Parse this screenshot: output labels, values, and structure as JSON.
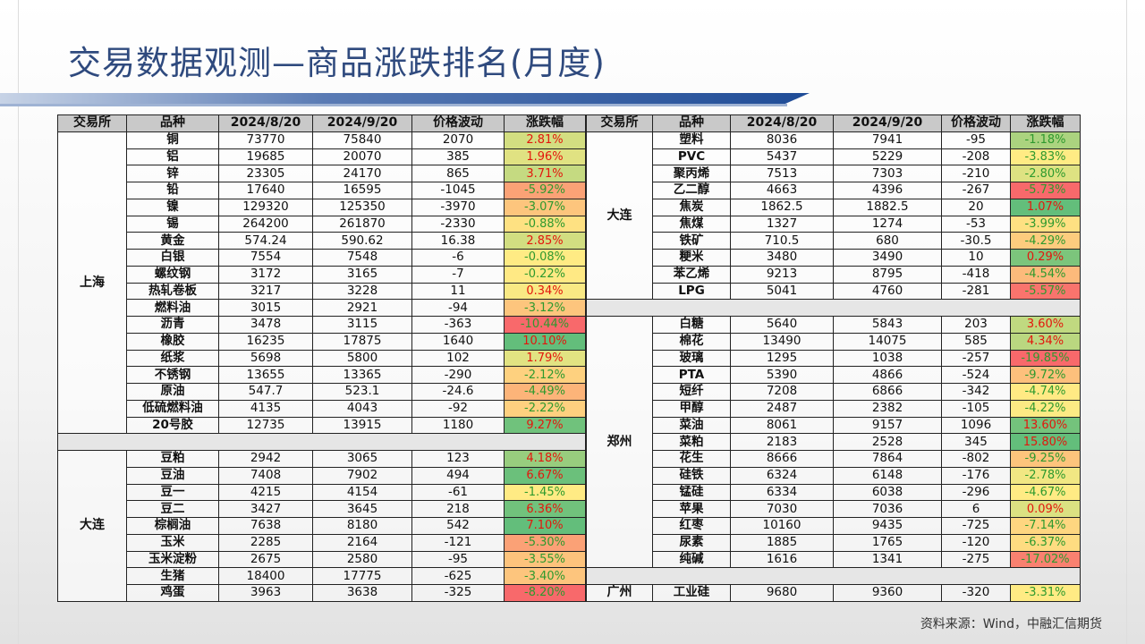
{
  "title": "交易数据观测—商品涨跌排名(月度)",
  "source": "资料来源：Wind，中融汇信期货",
  "headers": [
    "交易所",
    "品种",
    "2024/8/20",
    "2024/9/20",
    "价格波动",
    "涨跌幅"
  ],
  "colors": {
    "up_text": "#e3170d",
    "down_text": "#2e9a2e",
    "scale_low": "#f8696b",
    "scale_mid": "#ffeb84",
    "scale_high": "#63be7b"
  },
  "left": [
    {
      "exchange": "上海",
      "rows": [
        [
          "铜",
          "73770",
          "75840",
          "2070",
          "2.81%"
        ],
        [
          "铝",
          "19685",
          "20070",
          "385",
          "1.96%"
        ],
        [
          "锌",
          "23305",
          "24170",
          "865",
          "3.71%"
        ],
        [
          "铅",
          "17640",
          "16595",
          "-1045",
          "-5.92%"
        ],
        [
          "镍",
          "129320",
          "125350",
          "-3970",
          "-3.07%"
        ],
        [
          "锡",
          "264200",
          "261870",
          "-2330",
          "-0.88%"
        ],
        [
          "黄金",
          "574.24",
          "590.62",
          "16.38",
          "2.85%"
        ],
        [
          "白银",
          "7554",
          "7548",
          "-6",
          "-0.08%"
        ],
        [
          "螺纹钢",
          "3172",
          "3165",
          "-7",
          "-0.22%"
        ],
        [
          "热轧卷板",
          "3217",
          "3228",
          "11",
          "0.34%"
        ],
        [
          "燃料油",
          "3015",
          "2921",
          "-94",
          "-3.12%"
        ],
        [
          "沥青",
          "3478",
          "3115",
          "-363",
          "-10.44%"
        ],
        [
          "橡胶",
          "16235",
          "17875",
          "1640",
          "10.10%"
        ],
        [
          "纸浆",
          "5698",
          "5800",
          "102",
          "1.79%"
        ],
        [
          "不锈钢",
          "13655",
          "13365",
          "-290",
          "-2.12%"
        ],
        [
          "原油",
          "547.7",
          "523.1",
          "-24.6",
          "-4.49%"
        ],
        [
          "低硫燃料油",
          "4135",
          "4043",
          "-92",
          "-2.22%"
        ],
        [
          "20号胶",
          "12735",
          "13915",
          "1180",
          "9.27%"
        ]
      ]
    },
    {
      "exchange": "大连",
      "rows": [
        [
          "豆粕",
          "2942",
          "3065",
          "123",
          "4.18%"
        ],
        [
          "豆油",
          "7408",
          "7902",
          "494",
          "6.67%"
        ],
        [
          "豆一",
          "4215",
          "4154",
          "-61",
          "-1.45%"
        ],
        [
          "豆二",
          "3427",
          "3645",
          "218",
          "6.36%"
        ],
        [
          "棕榈油",
          "7638",
          "8180",
          "542",
          "7.10%"
        ],
        [
          "玉米",
          "2285",
          "2164",
          "-121",
          "-5.30%"
        ],
        [
          "玉米淀粉",
          "2675",
          "2580",
          "-95",
          "-3.55%"
        ],
        [
          "生猪",
          "18400",
          "17775",
          "-625",
          "-3.40%"
        ],
        [
          "鸡蛋",
          "3963",
          "3638",
          "-325",
          "-8.20%"
        ]
      ]
    }
  ],
  "right": [
    {
      "exchange": "大连",
      "rows": [
        [
          "塑料",
          "8036",
          "7941",
          "-95",
          "-1.18%"
        ],
        [
          "PVC",
          "5437",
          "5229",
          "-208",
          "-3.83%"
        ],
        [
          "聚丙烯",
          "7513",
          "7303",
          "-210",
          "-2.80%"
        ],
        [
          "乙二醇",
          "4663",
          "4396",
          "-267",
          "-5.73%"
        ],
        [
          "焦炭",
          "1862.5",
          "1882.5",
          "20",
          "1.07%"
        ],
        [
          "焦煤",
          "1327",
          "1274",
          "-53",
          "-3.99%"
        ],
        [
          "铁矿",
          "710.5",
          "680",
          "-30.5",
          "-4.29%"
        ],
        [
          "粳米",
          "3480",
          "3490",
          "10",
          "0.29%"
        ],
        [
          "苯乙烯",
          "9213",
          "8795",
          "-418",
          "-4.54%"
        ],
        [
          "LPG",
          "5041",
          "4760",
          "-281",
          "-5.57%"
        ]
      ]
    },
    {
      "exchange": "郑州",
      "rows": [
        [
          "白糖",
          "5640",
          "5843",
          "203",
          "3.60%"
        ],
        [
          "棉花",
          "13490",
          "14075",
          "585",
          "4.34%"
        ],
        [
          "玻璃",
          "1295",
          "1038",
          "-257",
          "-19.85%"
        ],
        [
          "PTA",
          "5390",
          "4866",
          "-524",
          "-9.72%"
        ],
        [
          "短纤",
          "7208",
          "6866",
          "-342",
          "-4.74%"
        ],
        [
          "甲醇",
          "2487",
          "2382",
          "-105",
          "-4.22%"
        ],
        [
          "菜油",
          "8061",
          "9157",
          "1096",
          "13.60%"
        ],
        [
          "菜粕",
          "2183",
          "2528",
          "345",
          "15.80%"
        ],
        [
          "花生",
          "8666",
          "7864",
          "-802",
          "-9.25%"
        ],
        [
          "硅铁",
          "6324",
          "6148",
          "-176",
          "-2.78%"
        ],
        [
          "锰硅",
          "6334",
          "6038",
          "-296",
          "-4.67%"
        ],
        [
          "苹果",
          "7030",
          "7036",
          "6",
          "0.09%"
        ],
        [
          "红枣",
          "10160",
          "9435",
          "-725",
          "-7.14%"
        ],
        [
          "尿素",
          "1885",
          "1765",
          "-120",
          "-6.37%"
        ],
        [
          "纯碱",
          "1616",
          "1341",
          "-275",
          "-17.02%"
        ]
      ]
    },
    {
      "exchange": "广州",
      "rows": [
        [
          "工业硅",
          "9680",
          "9360",
          "-320",
          "-3.31%"
        ]
      ]
    }
  ]
}
